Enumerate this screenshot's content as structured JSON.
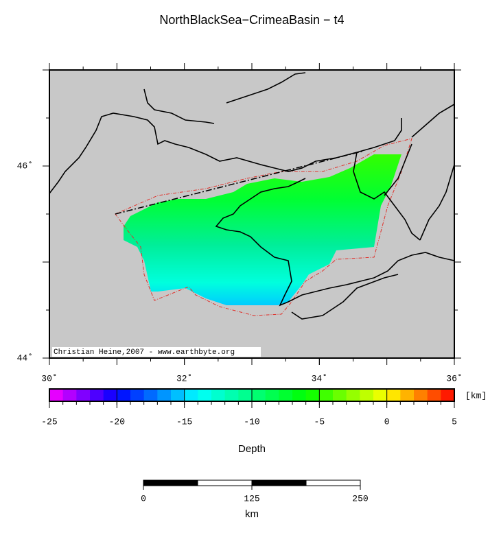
{
  "title": "NorthBlackSea−CrimeaBasin − t4",
  "map": {
    "xlim": [
      30,
      36
    ],
    "ylim": [
      44,
      47
    ],
    "xticks": [
      {
        "value": 30,
        "label": "30˚"
      },
      {
        "value": 32,
        "label": "32˚"
      },
      {
        "value": 34,
        "label": "34˚"
      },
      {
        "value": 36,
        "label": "36˚"
      }
    ],
    "yticks": [
      {
        "value": 44,
        "label": "44˚"
      },
      {
        "value": 46,
        "label": "46˚"
      }
    ],
    "credit": "Christian Heine,2007 - www.earthbyte.org"
  },
  "colorbar": {
    "label": "Depth",
    "unit": "[km]",
    "lim": [
      -25,
      5
    ],
    "ticks": [
      -25,
      -20,
      -15,
      -10,
      -5,
      0,
      5
    ],
    "stops": [
      {
        "value": -25,
        "color": "#ff00ff"
      },
      {
        "value": -20,
        "color": "#0000ff"
      },
      {
        "value": -14,
        "color": "#00ffff"
      },
      {
        "value": -10,
        "color": "#00ff80"
      },
      {
        "value": -6,
        "color": "#00ff00"
      },
      {
        "value": 0,
        "color": "#ffff00"
      },
      {
        "value": 5,
        "color": "#ff0000"
      }
    ]
  },
  "scalebar": {
    "unit": "km",
    "ticks": [
      0,
      125,
      250
    ]
  }
}
